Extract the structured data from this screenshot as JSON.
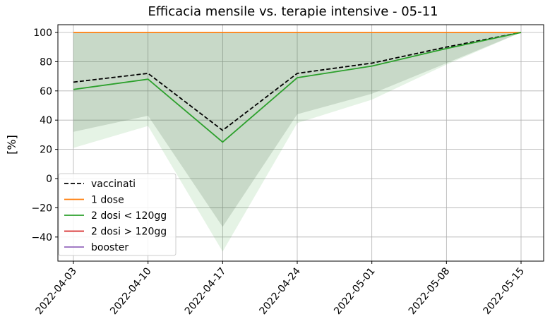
{
  "chart_data": {
    "type": "line",
    "title": "Efficacia mensile vs. terapie intensive - 05-11",
    "ylabel": "[%]",
    "categories": [
      "2022-04-03",
      "2022-04-10",
      "2022-04-17",
      "2022-04-24",
      "2022-05-01",
      "2022-05-08",
      "2022-05-15"
    ],
    "series": [
      {
        "name": "vaccinati",
        "color": "#000000",
        "dash": true,
        "values": [
          66,
          72,
          33,
          72,
          79,
          90,
          100
        ]
      },
      {
        "name": "1 dose",
        "color": "#ff7f0e",
        "values": [
          100,
          100,
          100,
          100,
          100,
          100,
          100
        ]
      },
      {
        "name": "2 dosi < 120gg",
        "color": "#2ca02c",
        "values": [
          61,
          68,
          25,
          69,
          77,
          89,
          100
        ]
      },
      {
        "name": "2 dosi > 120gg",
        "color": "#d62728",
        "values": [
          null,
          null,
          null,
          null,
          null,
          null,
          null
        ]
      },
      {
        "name": "booster",
        "color": "#9467bd",
        "values": [
          null,
          null,
          null,
          null,
          null,
          null,
          null
        ]
      }
    ],
    "bands": [
      {
        "color": "rgba(44,160,44,0.12)",
        "lower": [
          21,
          36,
          -50,
          38,
          54,
          78,
          100
        ],
        "upper": [
          100,
          100,
          100,
          100,
          100,
          100,
          100
        ]
      },
      {
        "color": "rgba(70,100,70,0.18)",
        "lower": [
          32,
          43,
          -33,
          44,
          58,
          79,
          100
        ],
        "upper": [
          100,
          100,
          100,
          100,
          100,
          100,
          100
        ]
      }
    ],
    "ylim": [
      -56.5,
      105.3
    ],
    "yticks": [
      {
        "value": -40,
        "label": "−40"
      },
      {
        "value": -20,
        "label": "−20"
      },
      0,
      20,
      40,
      60,
      80,
      100
    ],
    "grid": true,
    "legend": "lower left"
  }
}
